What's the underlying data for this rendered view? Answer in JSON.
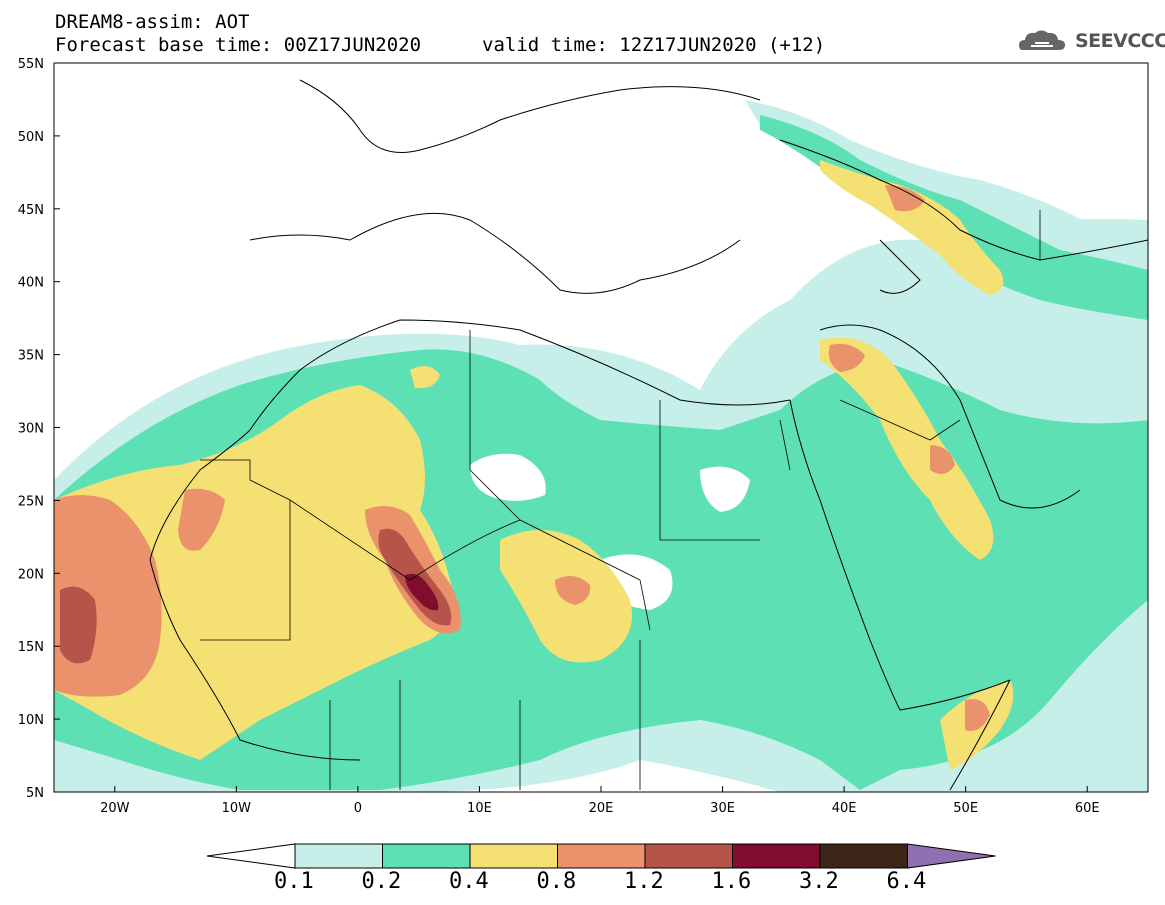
{
  "title": {
    "line1": "DREAM8-assim: AOT",
    "line2": "Forecast base time: 00Z17JUN2020",
    "valid": "valid time: 12Z17JUN2020 (+12)"
  },
  "logo": {
    "text": "SEEVCCC",
    "icon": "cloud-icon"
  },
  "map": {
    "projection": "lat-lon",
    "lon_range": [
      -25,
      65
    ],
    "lat_range": [
      5,
      55
    ],
    "lat_labels": [
      "55N",
      "50N",
      "45N",
      "40N",
      "35N",
      "30N",
      "25N",
      "20N",
      "15N",
      "10N",
      "5N"
    ],
    "lon_labels": [
      "20W",
      "10W",
      "0",
      "10E",
      "20E",
      "30E",
      "40E",
      "50E",
      "60E"
    ],
    "variable": "AOT"
  },
  "legend": {
    "levels": [
      "0.1",
      "0.2",
      "0.4",
      "0.8",
      "1.2",
      "1.6",
      "3.2",
      "6.4"
    ],
    "colors": [
      "#ffffff",
      "#c6efe9",
      "#5ee0b5",
      "#f5e173",
      "#e9926b",
      "#b6544a",
      "#800d2e",
      "#3c2517",
      "#8e6fb0"
    ]
  }
}
